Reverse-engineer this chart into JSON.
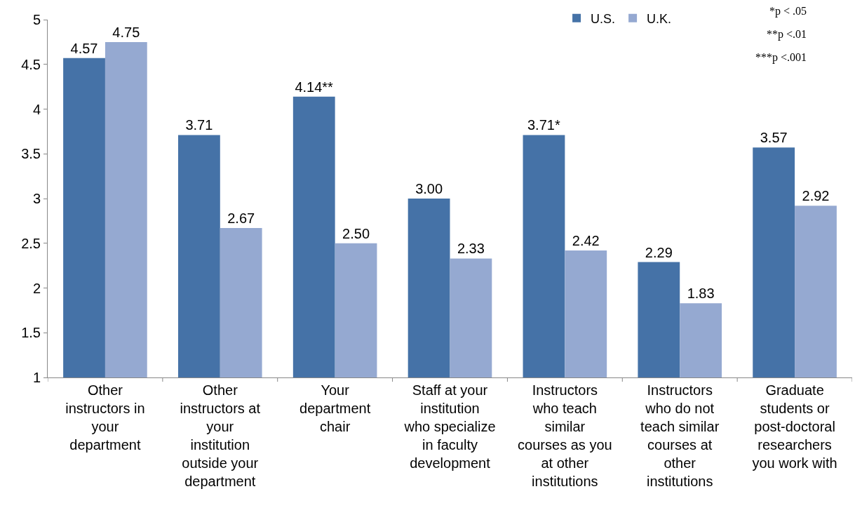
{
  "chart_data": {
    "type": "bar",
    "categories": [
      "Other instructors in your department",
      "Other instructors at your institution outside your department",
      "Your department chair",
      "Staff at your institution who specialize in faculty development",
      "Instructors who teach similar courses as you at other institutions",
      "Instructors who do not teach similar courses at other institutions",
      "Graduate students or post-doctoral researchers you work with"
    ],
    "series": [
      {
        "name": "U.S.",
        "color": "#4572a7",
        "values": [
          4.57,
          3.71,
          4.14,
          3.0,
          3.71,
          2.29,
          3.57
        ],
        "value_labels": [
          "4.57",
          "3.71",
          "4.14**",
          "3.00",
          "3.71*",
          "2.29",
          "3.57"
        ]
      },
      {
        "name": "U.K.",
        "color": "#95a9d1",
        "values": [
          4.75,
          2.67,
          2.5,
          2.33,
          2.42,
          1.83,
          2.92
        ],
        "value_labels": [
          "4.75",
          "2.67",
          "2.50",
          "2.33",
          "2.42",
          "1.83",
          "2.92"
        ]
      }
    ],
    "ylim": [
      1,
      5
    ],
    "yticks": [
      1,
      1.5,
      2,
      2.5,
      3,
      3.5,
      4,
      4.5,
      5
    ],
    "grid": false,
    "legend": "top right",
    "annotations": [
      "*p < .05",
      "**p <.01",
      "***p <.001"
    ]
  }
}
